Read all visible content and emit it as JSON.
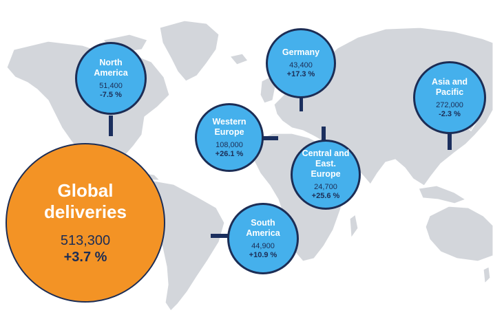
{
  "colors": {
    "land": "#d3d6db",
    "region_bubble": "#45b0ec",
    "global_bubble": "#f39325",
    "outline_and_connectors": "#1c2d55",
    "label_white": "#ffffff"
  },
  "global": {
    "name": "Global\ndeliveries",
    "value": "513,300",
    "change": "+3.7 %"
  },
  "regions": {
    "north_america": {
      "name": "North\nAmerica",
      "value": "51,400",
      "change": "-7.5 %"
    },
    "germany": {
      "name": "Germany",
      "value": "43,400",
      "change": "+17.3 %"
    },
    "asia_pacific": {
      "name": "Asia and\nPacific",
      "value": "272,000",
      "change": "-2.3 %"
    },
    "western_europe": {
      "name": "Western\nEurope",
      "value": "108,000",
      "change": "+26.1 %"
    },
    "central_east_europe": {
      "name": "Central and\nEast. Europe",
      "value": "24,700",
      "change": "+25.6 %"
    },
    "south_america": {
      "name": "South\nAmerica",
      "value": "44,900",
      "change": "+10.9 %"
    }
  }
}
